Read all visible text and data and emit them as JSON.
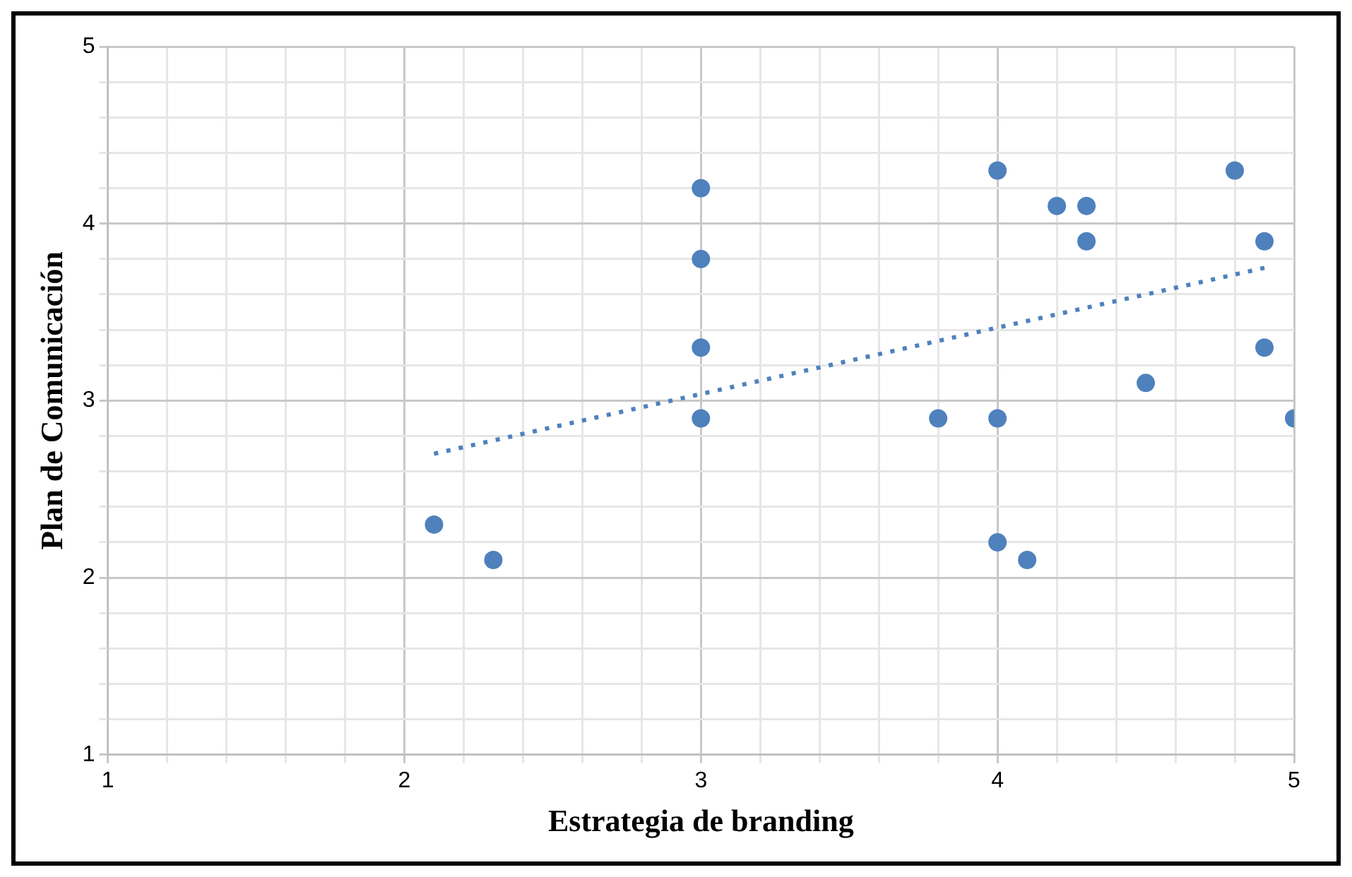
{
  "chart_data": {
    "type": "scatter",
    "xlabel": "Estrategia de branding",
    "ylabel": "Plan de Comunicación",
    "xlim": [
      1,
      5
    ],
    "ylim": [
      1,
      5
    ],
    "xticks": [
      1,
      {
        "value": 1.2,
        "label": null
      },
      {
        "value": 1.4,
        "label": null
      },
      {
        "value": 1.6,
        "label": null
      },
      {
        "value": 1.8,
        "label": null
      },
      2,
      {
        "value": 2.2,
        "label": null
      },
      {
        "value": 2.4,
        "label": null
      },
      {
        "value": 2.6,
        "label": null
      },
      {
        "value": 2.8,
        "label": null
      },
      3,
      {
        "value": 3.2,
        "label": null
      },
      {
        "value": 3.4,
        "label": null
      },
      {
        "value": 3.6,
        "label": null
      },
      {
        "value": 3.8,
        "label": null
      },
      4,
      {
        "value": 4.2,
        "label": null
      },
      {
        "value": 4.4,
        "label": null
      },
      {
        "value": 4.6,
        "label": null
      },
      {
        "value": 4.8,
        "label": null
      },
      5
    ],
    "yticks": [
      1,
      {
        "value": 1.2,
        "label": null
      },
      {
        "value": 1.4,
        "label": null
      },
      {
        "value": 1.6,
        "label": null
      },
      {
        "value": 1.8,
        "label": null
      },
      2,
      {
        "value": 2.2,
        "label": null
      },
      {
        "value": 2.4,
        "label": null
      },
      {
        "value": 2.6,
        "label": null
      },
      {
        "value": 2.8,
        "label": null
      },
      3,
      {
        "value": 3.2,
        "label": null
      },
      {
        "value": 3.4,
        "label": null
      },
      {
        "value": 3.6,
        "label": null
      },
      {
        "value": 3.8,
        "label": null
      },
      4,
      {
        "value": 4.2,
        "label": null
      },
      {
        "value": 4.4,
        "label": null
      },
      {
        "value": 4.6,
        "label": null
      },
      {
        "value": 4.8,
        "label": null
      },
      5
    ],
    "grid": true,
    "marker": "circle",
    "series": [
      {
        "type": "scatter",
        "color": "#4f81bd",
        "x": [
          2.1,
          2.3,
          3,
          3,
          3,
          3,
          3.8,
          4,
          4,
          4,
          4.1,
          4.2,
          4.3,
          4.3,
          4.5,
          4.8,
          4.9,
          4.9,
          5
        ],
        "values": [
          2.3,
          2.1,
          4.2,
          3.8,
          3.3,
          2.9,
          2.9,
          4.3,
          2.9,
          2.2,
          2.1,
          4.1,
          4.1,
          3.9,
          3.1,
          4.3,
          3.9,
          3.3,
          2.9
        ]
      },
      {
        "type": "line",
        "color": "#4f81bd",
        "line_style": "dotted",
        "marker": "none",
        "x": [
          2.1,
          4.9
        ],
        "values": [
          2.7,
          3.75
        ]
      }
    ]
  }
}
